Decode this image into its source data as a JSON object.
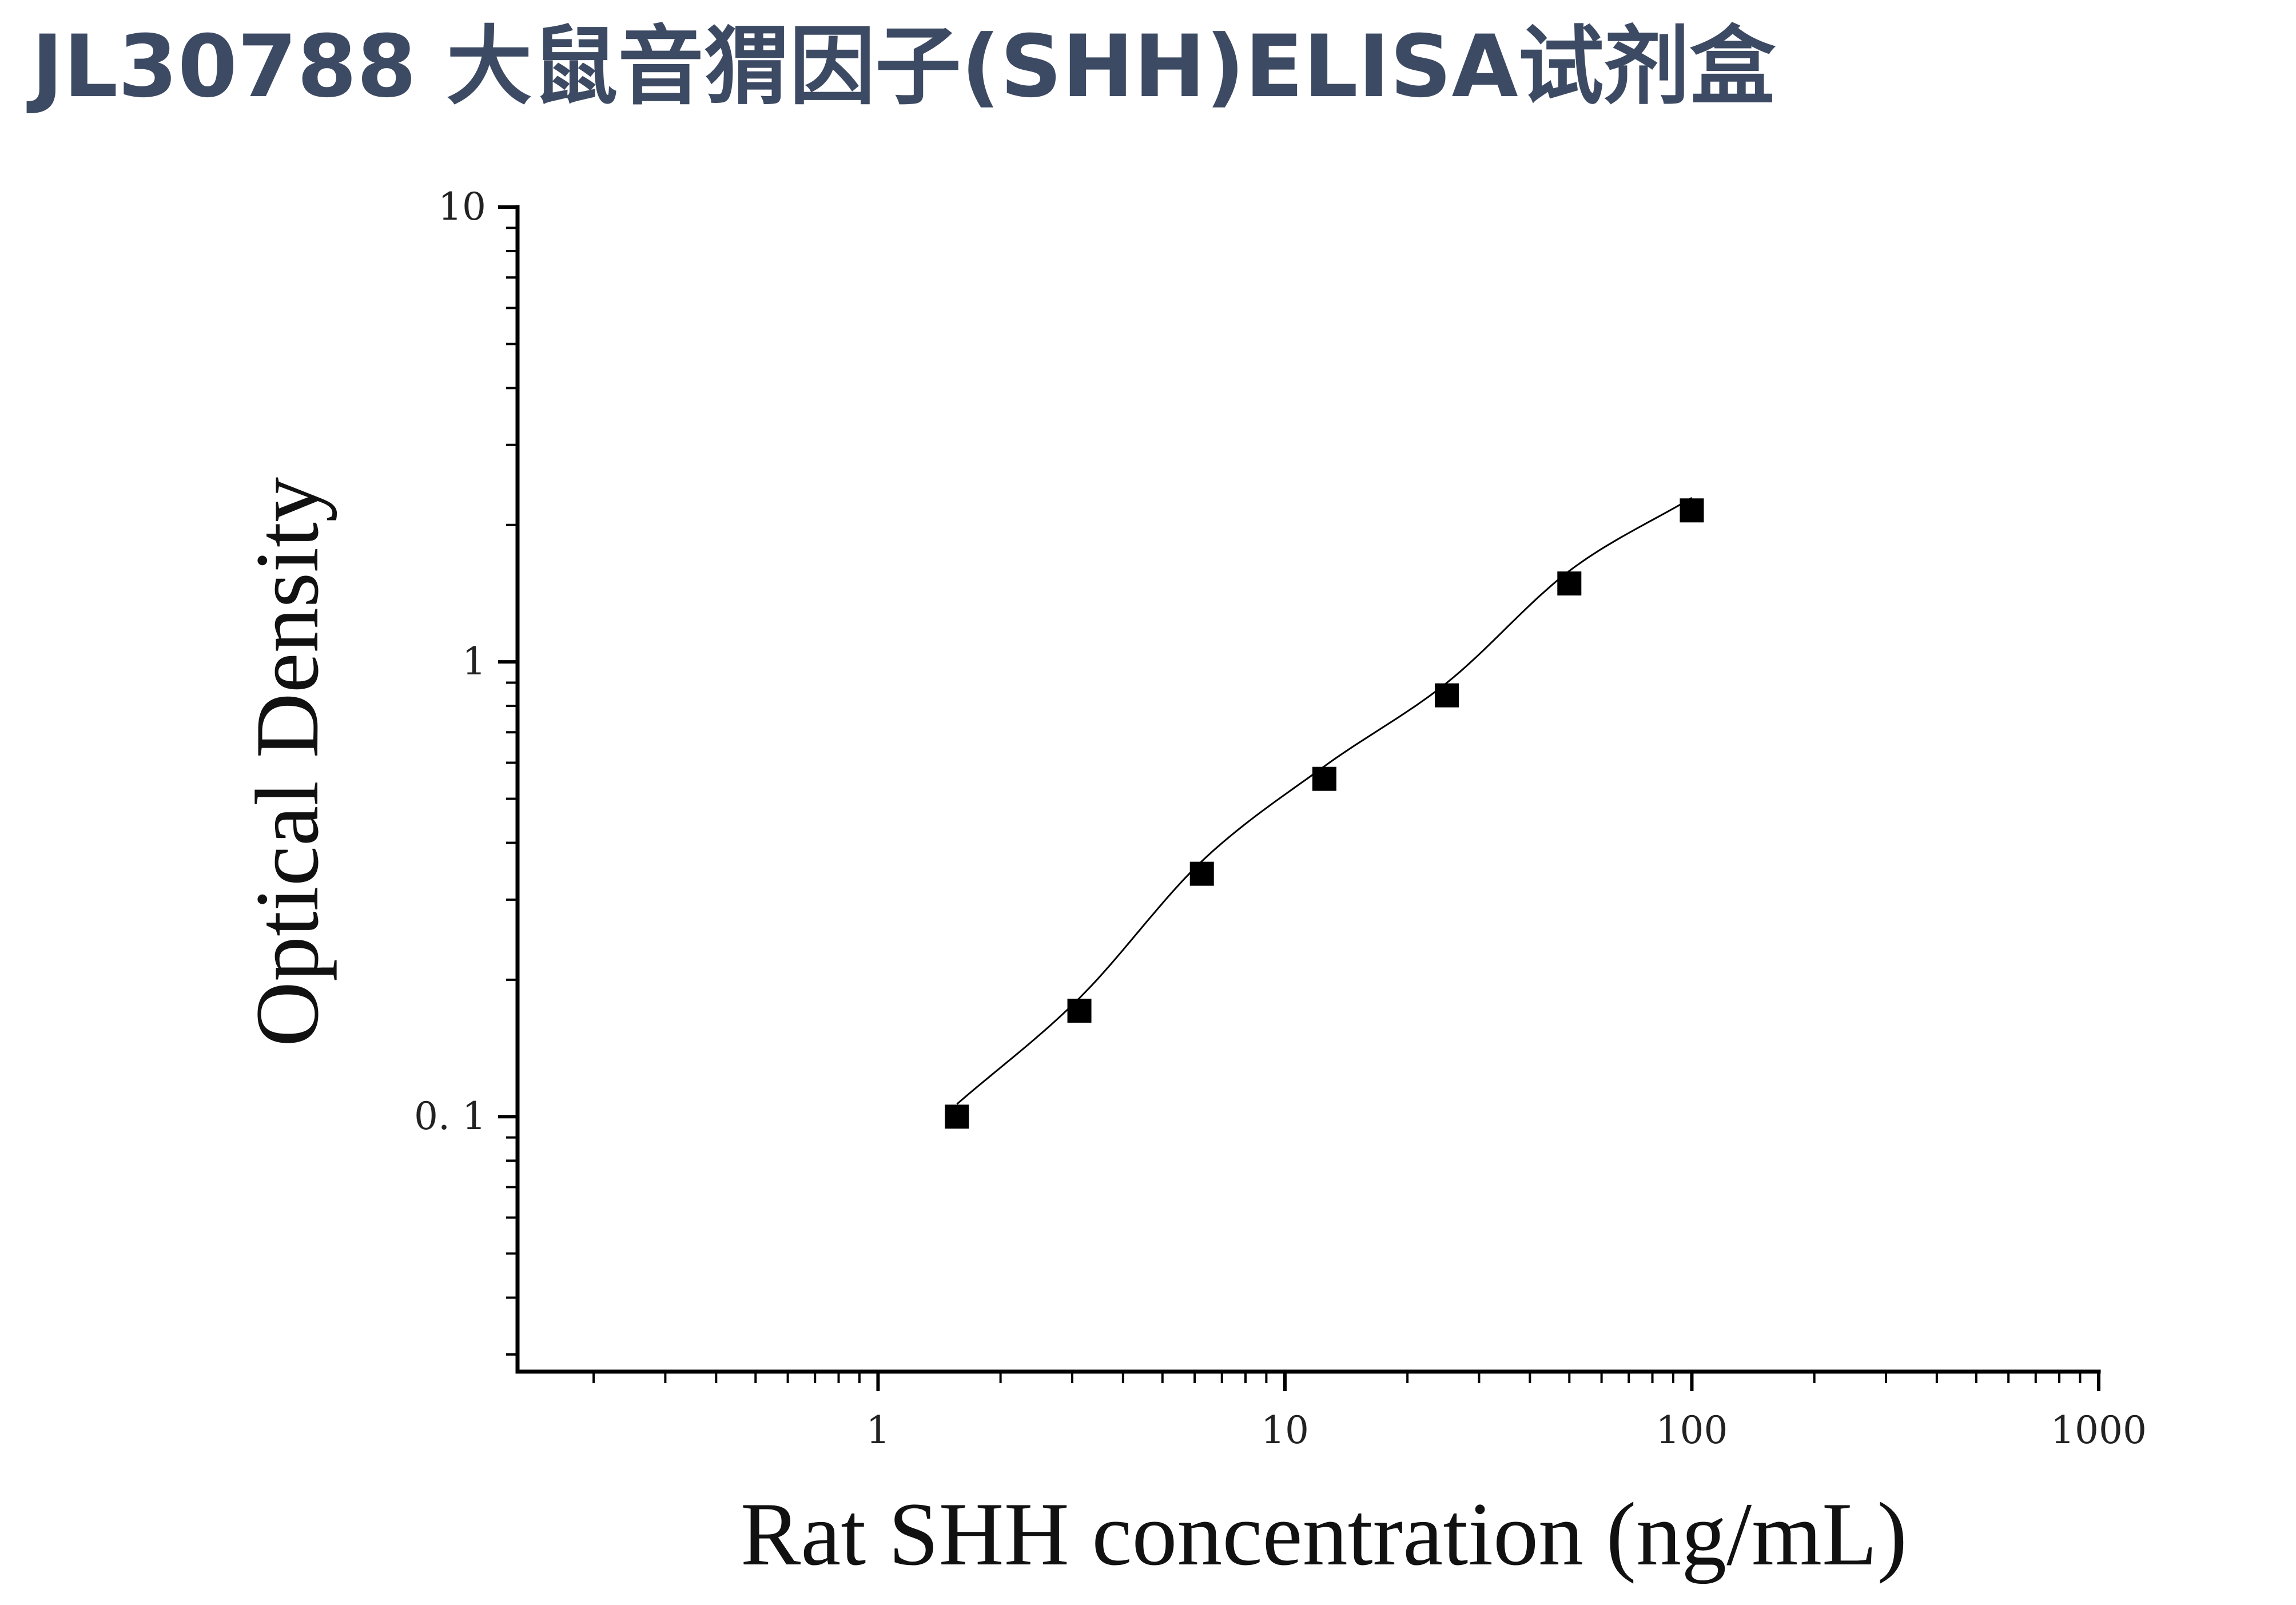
{
  "title": "JL30788 大鼠音猬因子(SHH)ELISA试剂盒",
  "chart_data": {
    "type": "scatter",
    "title": "",
    "xlabel": "Rat SHH concentration (ng/mL)",
    "ylabel": "Optical Density",
    "x_scale": "log",
    "y_scale": "log",
    "xlim": [
      0.13,
      1000
    ],
    "ylim": [
      0.0275,
      10
    ],
    "x_ticks": [
      {
        "value": 1,
        "label": "1"
      },
      {
        "value": 10,
        "label": "10"
      },
      {
        "value": 100,
        "label": "100"
      },
      {
        "value": 1000,
        "label": "1000"
      }
    ],
    "y_ticks": [
      {
        "value": 0.1,
        "label": "0. 1"
      },
      {
        "value": 1,
        "label": "1"
      },
      {
        "value": 10,
        "label": "10"
      }
    ],
    "grid": false,
    "legend": "none",
    "marker": "square",
    "marker_color": "#000000",
    "line_color": "#000000",
    "series": [
      {
        "points": [
          {
            "x": 1.5625,
            "y": 0.1
          },
          {
            "x": 3.125,
            "y": 0.171
          },
          {
            "x": 6.25,
            "y": 0.342
          },
          {
            "x": 12.5,
            "y": 0.553
          },
          {
            "x": 25,
            "y": 0.844
          },
          {
            "x": 50,
            "y": 1.487
          },
          {
            "x": 100,
            "y": 2.153
          }
        ]
      }
    ]
  }
}
